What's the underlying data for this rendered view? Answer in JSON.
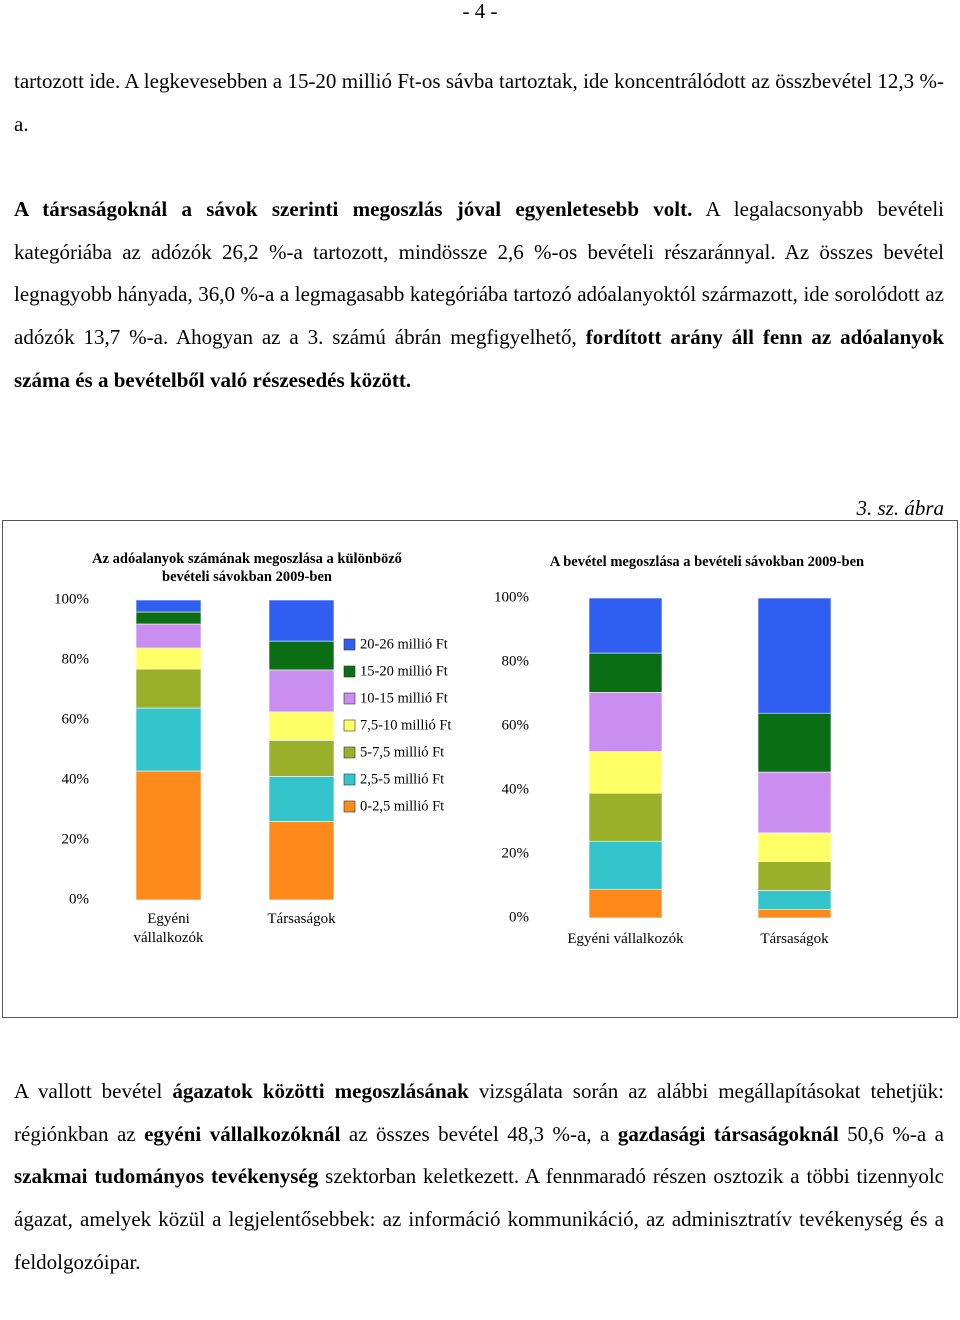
{
  "page_number": "- 4 -",
  "paragraphs": [
    [
      {
        "text": "tartozott ide. A legkevesebben a 15-20 millió Ft-os sávba tartoztak, ide koncentrálódott az összbevétel 12,3 %-a."
      }
    ],
    [
      {
        "text": "A társaságoknál a sávok szerinti megoszlás jóval egyenletesebb volt.",
        "bold": true
      },
      {
        "text": " A legalacsonyabb bevételi kategóriába az adózók 26,2 %-a tartozott, mindössze 2,6 %-os bevételi részaránnyal. Az összes bevétel legnagyobb hányada, 36,0 %-a a legmagasabb kategóriába tartozó adóalanyoktól származott, ide sorolódott az adózók 13,7 %-a. Ahogyan az a 3. számú ábrán megfigyelhető, "
      },
      {
        "text": "fordított arány áll fenn az adóalanyok száma és a bevételből való részesedés között.",
        "bold": true
      }
    ],
    [
      {
        "text": "A vallott bevétel "
      },
      {
        "text": "ágazatok közötti megoszlásának",
        "bold": true
      },
      {
        "text": " vizsgálata során az alábbi megállapításokat tehetjük: régiónkban az "
      },
      {
        "text": "egyéni vállalkozóknál",
        "bold": true
      },
      {
        "text": " az összes bevétel 48,3 %-a, a "
      },
      {
        "text": "gazdasági társaságoknál",
        "bold": true
      },
      {
        "text": " 50,6 %-a a "
      },
      {
        "text": "szakmai tudományos tevékenység",
        "bold": true
      },
      {
        "text": " szektorban keletkezett. A fennmaradó részen osztozik a többi tizennyolc ágazat, amelyek közül a legjelentősebbek: az információ kommunikáció, az adminisztratív tevékenység és a feldolgozóipar."
      }
    ]
  ],
  "figure_label": "3. sz. ábra",
  "chart_data": [
    {
      "type": "stacked_bar",
      "title": "Az adóalanyok számának megoszlása a különböző bevételi sávokban 2009-ben",
      "categories": [
        "Egyéni vállalkozók",
        "Társaságok"
      ],
      "ylim": [
        0,
        100
      ],
      "yticks": [
        {
          "value": 0,
          "label": "0%"
        },
        {
          "value": 20,
          "label": "20%"
        },
        {
          "value": 40,
          "label": "40%"
        },
        {
          "value": 60,
          "label": "60%"
        },
        {
          "value": 80,
          "label": "80%"
        },
        {
          "value": 100,
          "label": "100%"
        }
      ],
      "legend": true,
      "series": [
        {
          "name": "0-2,5 millió Ft",
          "color": "#ff8a1c",
          "values": [
            43,
            26.2
          ]
        },
        {
          "name": "2,5-5 millió Ft",
          "color": "#33c4cc",
          "values": [
            21,
            15
          ]
        },
        {
          "name": "5-7,5 millió Ft",
          "color": "#9bb02a",
          "values": [
            13,
            12
          ]
        },
        {
          "name": "7,5-10 millió Ft",
          "color": "#ffff66",
          "values": [
            7,
            9.5
          ]
        },
        {
          "name": "10-15 millió Ft",
          "color": "#c98ef0",
          "values": [
            8,
            14
          ]
        },
        {
          "name": "15-20 millió Ft",
          "color": "#0a6e14",
          "values": [
            4,
            9.6
          ]
        },
        {
          "name": "20-26 millió Ft",
          "color": "#2f5ef0",
          "values": [
            4,
            13.7
          ]
        }
      ]
    },
    {
      "type": "stacked_bar",
      "title": "A bevétel megoszlása a bevételi sávokban 2009-ben",
      "categories": [
        "Egyéni vállalkozók",
        "Társaságok"
      ],
      "ylim": [
        0,
        100
      ],
      "yticks": [
        {
          "value": 0,
          "label": "0%"
        },
        {
          "value": 20,
          "label": "20%"
        },
        {
          "value": 40,
          "label": "40%"
        },
        {
          "value": 60,
          "label": "60%"
        },
        {
          "value": 80,
          "label": "80%"
        },
        {
          "value": 100,
          "label": "100%"
        }
      ],
      "legend": false,
      "series": [
        {
          "name": "0-2,5 millió Ft",
          "color": "#ff8a1c",
          "values": [
            9,
            2.6
          ]
        },
        {
          "name": "2,5-5 millió Ft",
          "color": "#33c4cc",
          "values": [
            15,
            6
          ]
        },
        {
          "name": "5-7,5 millió Ft",
          "color": "#9bb02a",
          "values": [
            15,
            9
          ]
        },
        {
          "name": "7,5-10 millió Ft",
          "color": "#ffff66",
          "values": [
            13,
            9
          ]
        },
        {
          "name": "10-15 millió Ft",
          "color": "#c98ef0",
          "values": [
            18.5,
            19
          ]
        },
        {
          "name": "15-20 millió Ft",
          "color": "#0a6e14",
          "values": [
            12.3,
            18.4
          ]
        },
        {
          "name": "20-26 millió Ft",
          "color": "#2f5ef0",
          "values": [
            17.2,
            36
          ]
        }
      ]
    }
  ]
}
